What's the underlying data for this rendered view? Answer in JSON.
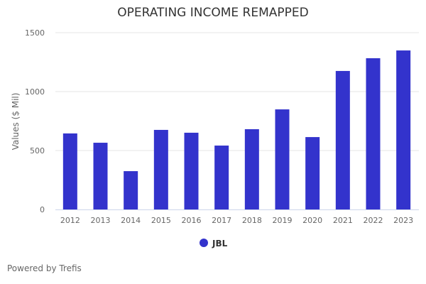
{
  "chart_data": {
    "type": "bar",
    "title": "OPERATING INCOME REMAPPED",
    "xlabel": "",
    "ylabel": "Values ($ Mil)",
    "ylim": [
      0,
      1500
    ],
    "yticks": [
      0,
      500,
      1000,
      1500
    ],
    "categories": [
      "2012",
      "2013",
      "2014",
      "2015",
      "2016",
      "2017",
      "2018",
      "2019",
      "2020",
      "2021",
      "2022",
      "2023"
    ],
    "series": [
      {
        "name": "JBL",
        "color": "#3333cc",
        "values": [
          645,
          566,
          325,
          675,
          651,
          542,
          681,
          849,
          614,
          1175,
          1283,
          1349
        ]
      }
    ],
    "grid": true,
    "legend": "bottom-center"
  },
  "footer": "Powered by Trefis"
}
